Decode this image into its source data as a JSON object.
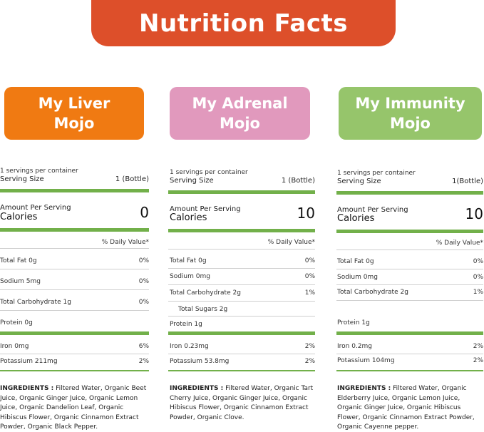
{
  "title": "Nutrition Facts",
  "products": [
    {
      "name_line1": "My Liver",
      "name_line2": "Mojo",
      "servings_per_container": "1 servings per container",
      "serving_size_label": "Serving Size",
      "serving_size_value": "1 (Bottle)",
      "amount_per_serving": "Amount Per Serving",
      "calories_label": "Calories",
      "calories_value": "0",
      "daily_value_label": "% Daily Value*",
      "nutrients": [
        {
          "label": "Total Fat 0g",
          "dv": "0%"
        },
        {
          "label": "Sodium 5mg",
          "dv": "0%"
        },
        {
          "label": "Total Carbohydrate 1g",
          "dv": "0%"
        },
        {
          "label": "Protein 0g",
          "dv": ""
        }
      ],
      "minerals": [
        {
          "label": "Iron 0mg",
          "dv": "6%"
        },
        {
          "label": "Potassium 211mg",
          "dv": "2%"
        }
      ],
      "ingredients_head": "INGREDIENTS :",
      "ingredients_text": " Filtered Water, Organic Beet Juice, Organic Ginger Juice, Organic Lemon Juice, Organic Dandelion Leaf, Organic Hibiscus Flower, Organic Cinnamon Extract Powder, Organic Black Pepper."
    },
    {
      "name_line1": "My Adrenal",
      "name_line2": "Mojo",
      "servings_per_container": "1 servings per container",
      "serving_size_label": "Serving Size",
      "serving_size_value": "1 (Bottle)",
      "amount_per_serving": "Amount Per Serving",
      "calories_label": "Calories",
      "calories_value": "10",
      "daily_value_label": "% Daily Value*",
      "nutrients": [
        {
          "label": "Total Fat 0g",
          "dv": "0%"
        },
        {
          "label": "Sodium 0mg",
          "dv": "0%"
        },
        {
          "label": "Total Carbohydrate 2g",
          "dv": "1%"
        },
        {
          "label": "Total Sugars 2g",
          "dv": ""
        },
        {
          "label": "Protein 1g",
          "dv": ""
        }
      ],
      "minerals": [
        {
          "label": "Iron 0.23mg",
          "dv": "2%"
        },
        {
          "label": "Potassium 53.8mg",
          "dv": "2%"
        }
      ],
      "ingredients_head": "INGREDIENTS :",
      "ingredients_text": " Filtered Water, Organic Tart Cherry Juice, Organic Ginger Juice, Organic Hibiscus Flower, Organic Cinnamon Extract Powder, Organic Clove."
    },
    {
      "name_line1": "My Immunity",
      "name_line2": "Mojo",
      "servings_per_container": "1 servings per container",
      "serving_size_label": "Serving Size",
      "serving_size_value": "1(Bottle)",
      "amount_per_serving": "Amount Per Serving",
      "calories_label": "Calories",
      "calories_value": "10",
      "daily_value_label": "% Daily Value*",
      "nutrients": [
        {
          "label": "Total Fat 0g",
          "dv": "0%"
        },
        {
          "label": "Sodium 0mg",
          "dv": "0%"
        },
        {
          "label": "Total Carbohydrate 2g",
          "dv": "1%"
        },
        {
          "label": "Protein 1g",
          "dv": ""
        }
      ],
      "minerals": [
        {
          "label": "Iron 0.2mg",
          "dv": "2%"
        },
        {
          "label": "Potassium 104mg",
          "dv": "2%"
        }
      ],
      "ingredients_head": "INGREDIENTS :",
      "ingredients_text": " Filtered Water, Organic Elderberry Juice, Organic Lemon Juice, Organic Ginger Juice, Organic Hibiscus Flower, Organic Cinnamon Extract Powder, Organic Cayenne pepper."
    }
  ]
}
